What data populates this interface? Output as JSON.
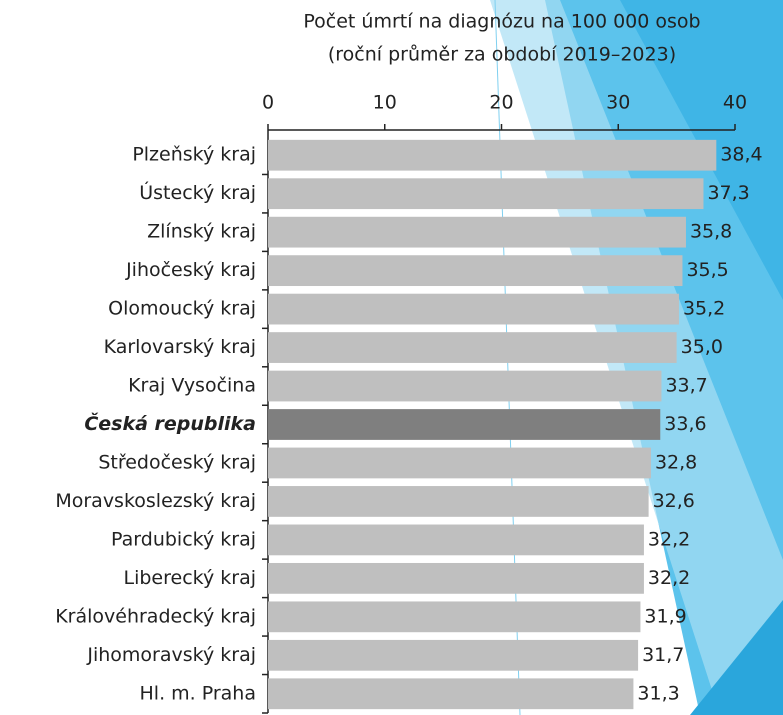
{
  "chart_data": {
    "type": "bar",
    "orientation": "horizontal",
    "title": [
      "Počet úmrtí na diagnózu na 100 000 osob",
      "(roční průměr za období 2019–2023)"
    ],
    "categories": [
      "Plzeňský kraj",
      "Ústecký kraj",
      "Zlínský kraj",
      "Jihočeský kraj",
      "Olomoucký kraj",
      "Karlovarský kraj",
      "Kraj Vysočina",
      "Česká republika",
      "Středočeský kraj",
      "Moravskoslezský kraj",
      "Pardubický kraj",
      "Liberecký kraj",
      "Královéhradecký kraj",
      "Jihomoravský kraj",
      "Hl. m. Praha"
    ],
    "values": [
      38.4,
      37.3,
      35.8,
      35.5,
      35.2,
      35.0,
      33.7,
      33.6,
      32.8,
      32.6,
      32.2,
      32.2,
      31.9,
      31.7,
      31.3
    ],
    "value_labels": [
      "38,4",
      "37,3",
      "35,8",
      "35,5",
      "35,2",
      "35,0",
      "33,7",
      "33,6",
      "32,8",
      "32,6",
      "32,2",
      "32,2",
      "31,9",
      "31,7",
      "31,3"
    ],
    "color": "#bfbfbf",
    "highlight_color": "#7f7f7f",
    "highlight_index": 7,
    "xlim": [
      0,
      40
    ],
    "xticks": [
      0,
      10,
      20,
      30,
      40
    ]
  }
}
